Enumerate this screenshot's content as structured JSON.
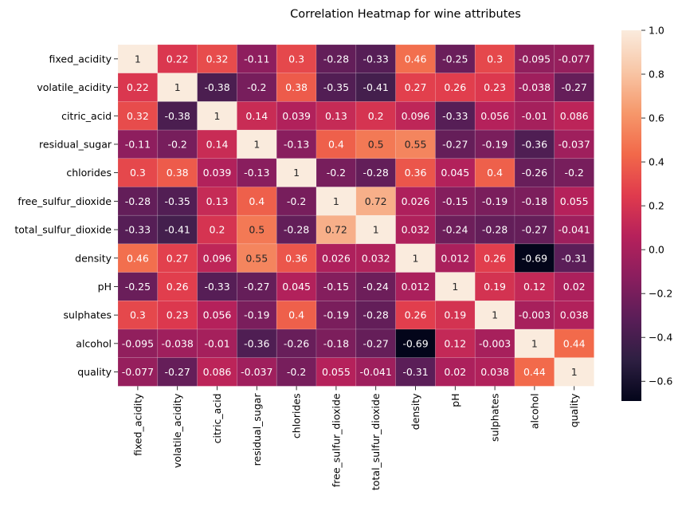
{
  "chart_data": {
    "type": "heatmap",
    "title": "Correlation Heatmap for wine attributes",
    "rows": [
      "fixed_acidity",
      "volatile_acidity",
      "citric_acid",
      "residual_sugar",
      "chlorides",
      "free_sulfur_dioxide",
      "total_sulfur_dioxide",
      "density",
      "pH",
      "sulphates",
      "alcohol",
      "quality"
    ],
    "columns": [
      "fixed_acidity",
      "volatile_acidity",
      "citric_acid",
      "residual_sugar",
      "chlorides",
      "free_sulfur_dioxide",
      "total_sulfur_dioxide",
      "density",
      "pH",
      "sulphates",
      "alcohol",
      "quality"
    ],
    "values": [
      [
        1,
        0.22,
        0.32,
        -0.11,
        0.3,
        -0.28,
        -0.33,
        0.46,
        -0.25,
        0.3,
        -0.095,
        -0.077
      ],
      [
        0.22,
        1,
        -0.38,
        -0.2,
        0.38,
        -0.35,
        -0.41,
        0.27,
        0.26,
        0.23,
        -0.038,
        -0.27
      ],
      [
        0.32,
        -0.38,
        1,
        0.14,
        0.039,
        0.13,
        0.2,
        0.096,
        -0.33,
        0.056,
        -0.01,
        0.086
      ],
      [
        -0.11,
        -0.2,
        0.14,
        1,
        -0.13,
        0.4,
        0.5,
        0.55,
        -0.27,
        -0.19,
        -0.36,
        -0.037
      ],
      [
        0.3,
        0.38,
        0.039,
        -0.13,
        1,
        -0.2,
        -0.28,
        0.36,
        0.045,
        0.4,
        -0.26,
        -0.2
      ],
      [
        -0.28,
        -0.35,
        0.13,
        0.4,
        -0.2,
        1,
        0.72,
        0.026,
        -0.15,
        -0.19,
        -0.18,
        0.055
      ],
      [
        -0.33,
        -0.41,
        0.2,
        0.5,
        -0.28,
        0.72,
        1,
        0.032,
        -0.24,
        -0.28,
        -0.27,
        -0.041
      ],
      [
        0.46,
        0.27,
        0.096,
        0.55,
        0.36,
        0.026,
        0.032,
        1,
        0.012,
        0.26,
        -0.69,
        -0.31
      ],
      [
        -0.25,
        0.26,
        -0.33,
        -0.27,
        0.045,
        -0.15,
        -0.24,
        0.012,
        1,
        0.19,
        0.12,
        0.02
      ],
      [
        0.3,
        0.23,
        0.056,
        -0.19,
        0.4,
        -0.19,
        -0.28,
        0.26,
        0.19,
        1,
        -0.003,
        0.038
      ],
      [
        -0.095,
        -0.038,
        -0.01,
        -0.36,
        -0.26,
        -0.18,
        -0.27,
        -0.69,
        0.12,
        -0.003,
        1,
        0.44
      ],
      [
        -0.077,
        -0.27,
        0.086,
        -0.037,
        -0.2,
        0.055,
        -0.041,
        -0.31,
        0.02,
        0.038,
        0.44,
        1
      ]
    ],
    "colorbar": {
      "vmin": -0.69,
      "vmax": 1,
      "ticks": [
        1.0,
        0.8,
        0.6,
        0.4,
        0.2,
        0.0,
        -0.2,
        -0.4,
        -0.6
      ],
      "tick_labels": [
        "1.0",
        "0.8",
        "0.6",
        "0.4",
        "0.2",
        "0.0",
        "−0.2",
        "−0.4",
        "−0.6"
      ]
    },
    "colormap": "rocket",
    "colormap_stops": [
      "#03051a",
      "#2e1f42",
      "#5a1e58",
      "#8a1e5e",
      "#b6215b",
      "#e03b4d",
      "#f2694a",
      "#f6986b",
      "#f8c6a6",
      "#faebdd"
    ]
  }
}
